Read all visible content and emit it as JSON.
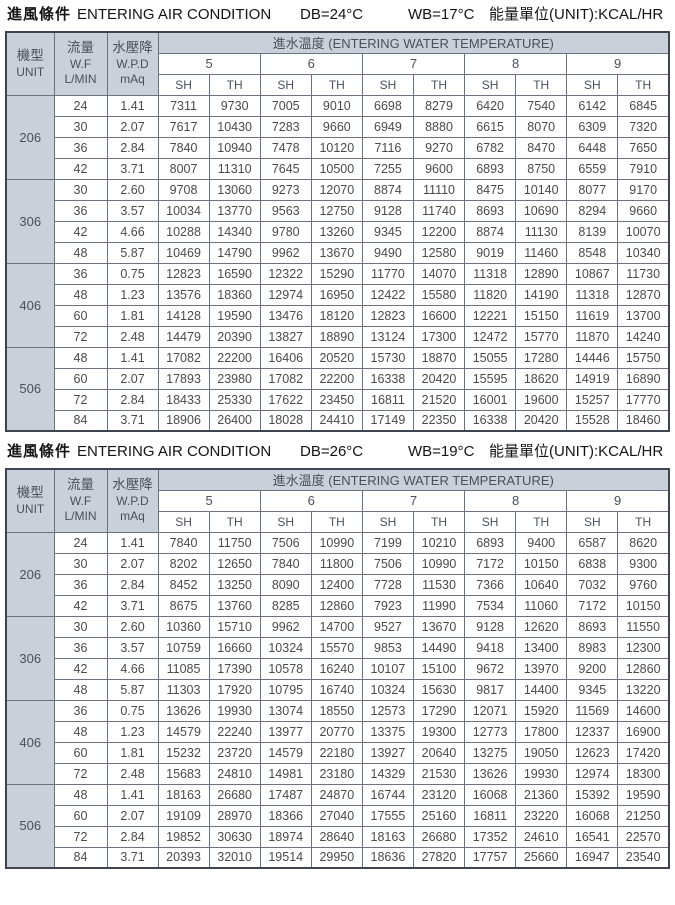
{
  "colors": {
    "header_fill": "#c9d0d9",
    "grid_line": "#6a7380",
    "outer_border": "#3e4450",
    "cell_text": "#4a4a4a",
    "title_text": "#141414"
  },
  "table_header": {
    "col1_zh": "機型",
    "col1_en": "UNIT",
    "col2_zh": "流量",
    "col2_en": "W.F",
    "col2_unit": "L/MIN",
    "col3_zh": "水壓降",
    "col3_en": "W.P.D",
    "col3_unit": "mAq",
    "water_temp_label": "進水温度 (ENTERING WATER TEMPERATURE)",
    "temps": [
      "5",
      "6",
      "7",
      "8",
      "9"
    ],
    "sub_sh": "SH",
    "sub_th": "TH"
  },
  "tables": [
    {
      "title_zh": "進風條件",
      "title_en": "ENTERING AIR CONDITION",
      "db": "DB=24°C",
      "wb": "WB=17°C",
      "energy_unit": "能量單位(UNIT):KCAL/HR",
      "groups": [
        {
          "unit": "206",
          "rows": [
            {
              "wf": "24",
              "wpd": "1.41",
              "v": [
                "7311",
                "9730",
                "7005",
                "9010",
                "6698",
                "8279",
                "6420",
                "7540",
                "6142",
                "6845"
              ]
            },
            {
              "wf": "30",
              "wpd": "2.07",
              "v": [
                "7617",
                "10430",
                "7283",
                "9660",
                "6949",
                "8880",
                "6615",
                "8070",
                "6309",
                "7320"
              ]
            },
            {
              "wf": "36",
              "wpd": "2.84",
              "v": [
                "7840",
                "10940",
                "7478",
                "10120",
                "7116",
                "9270",
                "6782",
                "8470",
                "6448",
                "7650"
              ]
            },
            {
              "wf": "42",
              "wpd": "3.71",
              "v": [
                "8007",
                "11310",
                "7645",
                "10500",
                "7255",
                "9600",
                "6893",
                "8750",
                "6559",
                "7910"
              ]
            }
          ]
        },
        {
          "unit": "306",
          "rows": [
            {
              "wf": "30",
              "wpd": "2.60",
              "v": [
                "9708",
                "13060",
                "9273",
                "12070",
                "8874",
                "11110",
                "8475",
                "10140",
                "8077",
                "9170"
              ]
            },
            {
              "wf": "36",
              "wpd": "3.57",
              "v": [
                "10034",
                "13770",
                "9563",
                "12750",
                "9128",
                "11740",
                "8693",
                "10690",
                "8294",
                "9660"
              ]
            },
            {
              "wf": "42",
              "wpd": "4.66",
              "v": [
                "10288",
                "14340",
                "9780",
                "13260",
                "9345",
                "12200",
                "8874",
                "11130",
                "8139",
                "10070"
              ]
            },
            {
              "wf": "48",
              "wpd": "5.87",
              "v": [
                "10469",
                "14790",
                "9962",
                "13670",
                "9490",
                "12580",
                "9019",
                "11460",
                "8548",
                "10340"
              ]
            }
          ]
        },
        {
          "unit": "406",
          "rows": [
            {
              "wf": "36",
              "wpd": "0.75",
              "v": [
                "12823",
                "16590",
                "12322",
                "15290",
                "11770",
                "14070",
                "11318",
                "12890",
                "10867",
                "11730"
              ]
            },
            {
              "wf": "48",
              "wpd": "1.23",
              "v": [
                "13576",
                "18360",
                "12974",
                "16950",
                "12422",
                "15580",
                "11820",
                "14190",
                "11318",
                "12870"
              ]
            },
            {
              "wf": "60",
              "wpd": "1.81",
              "v": [
                "14128",
                "19590",
                "13476",
                "18120",
                "12823",
                "16600",
                "12221",
                "15150",
                "11619",
                "13700"
              ]
            },
            {
              "wf": "72",
              "wpd": "2.48",
              "v": [
                "14479",
                "20390",
                "13827",
                "18890",
                "13124",
                "17300",
                "12472",
                "15770",
                "11870",
                "14240"
              ]
            }
          ]
        },
        {
          "unit": "506",
          "rows": [
            {
              "wf": "48",
              "wpd": "1.41",
              "v": [
                "17082",
                "22200",
                "16406",
                "20520",
                "15730",
                "18870",
                "15055",
                "17280",
                "14446",
                "15750"
              ]
            },
            {
              "wf": "60",
              "wpd": "2.07",
              "v": [
                "17893",
                "23980",
                "17082",
                "22200",
                "16338",
                "20420",
                "15595",
                "18620",
                "14919",
                "16890"
              ]
            },
            {
              "wf": "72",
              "wpd": "2.84",
              "v": [
                "18433",
                "25330",
                "17622",
                "23450",
                "16811",
                "21520",
                "16001",
                "19600",
                "15257",
                "17770"
              ]
            },
            {
              "wf": "84",
              "wpd": "3.71",
              "v": [
                "18906",
                "26400",
                "18028",
                "24410",
                "17149",
                "22350",
                "16338",
                "20420",
                "15528",
                "18460"
              ]
            }
          ]
        }
      ]
    },
    {
      "title_zh": "進風條件",
      "title_en": "ENTERING AIR CONDITION",
      "db": "DB=26°C",
      "wb": "WB=19°C",
      "energy_unit": "能量單位(UNIT):KCAL/HR",
      "groups": [
        {
          "unit": "206",
          "rows": [
            {
              "wf": "24",
              "wpd": "1.41",
              "v": [
                "7840",
                "11750",
                "7506",
                "10990",
                "7199",
                "10210",
                "6893",
                "9400",
                "6587",
                "8620"
              ]
            },
            {
              "wf": "30",
              "wpd": "2.07",
              "v": [
                "8202",
                "12650",
                "7840",
                "11800",
                "7506",
                "10990",
                "7172",
                "10150",
                "6838",
                "9300"
              ]
            },
            {
              "wf": "36",
              "wpd": "2.84",
              "v": [
                "8452",
                "13250",
                "8090",
                "12400",
                "7728",
                "11530",
                "7366",
                "10640",
                "7032",
                "9760"
              ]
            },
            {
              "wf": "42",
              "wpd": "3.71",
              "v": [
                "8675",
                "13760",
                "8285",
                "12860",
                "7923",
                "11990",
                "7534",
                "11060",
                "7172",
                "10150"
              ]
            }
          ]
        },
        {
          "unit": "306",
          "rows": [
            {
              "wf": "30",
              "wpd": "2.60",
              "v": [
                "10360",
                "15710",
                "9962",
                "14700",
                "9527",
                "13670",
                "9128",
                "12620",
                "8693",
                "11550"
              ]
            },
            {
              "wf": "36",
              "wpd": "3.57",
              "v": [
                "10759",
                "16660",
                "10324",
                "15570",
                "9853",
                "14490",
                "9418",
                "13400",
                "8983",
                "12300"
              ]
            },
            {
              "wf": "42",
              "wpd": "4.66",
              "v": [
                "11085",
                "17390",
                "10578",
                "16240",
                "10107",
                "15100",
                "9672",
                "13970",
                "9200",
                "12860"
              ]
            },
            {
              "wf": "48",
              "wpd": "5.87",
              "v": [
                "11303",
                "17920",
                "10795",
                "16740",
                "10324",
                "15630",
                "9817",
                "14400",
                "9345",
                "13220"
              ]
            }
          ]
        },
        {
          "unit": "406",
          "rows": [
            {
              "wf": "36",
              "wpd": "0.75",
              "v": [
                "13626",
                "19930",
                "13074",
                "18550",
                "12573",
                "17290",
                "12071",
                "15920",
                "11569",
                "14600"
              ]
            },
            {
              "wf": "48",
              "wpd": "1.23",
              "v": [
                "14579",
                "22240",
                "13977",
                "20770",
                "13375",
                "19300",
                "12773",
                "17800",
                "12337",
                "16900"
              ]
            },
            {
              "wf": "60",
              "wpd": "1.81",
              "v": [
                "15232",
                "23720",
                "14579",
                "22180",
                "13927",
                "20640",
                "13275",
                "19050",
                "12623",
                "17420"
              ]
            },
            {
              "wf": "72",
              "wpd": "2.48",
              "v": [
                "15683",
                "24810",
                "14981",
                "23180",
                "14329",
                "21530",
                "13626",
                "19930",
                "12974",
                "18300"
              ]
            }
          ]
        },
        {
          "unit": "506",
          "rows": [
            {
              "wf": "48",
              "wpd": "1.41",
              "v": [
                "18163",
                "26680",
                "17487",
                "24870",
                "16744",
                "23120",
                "16068",
                "21360",
                "15392",
                "19590"
              ]
            },
            {
              "wf": "60",
              "wpd": "2.07",
              "v": [
                "19109",
                "28970",
                "18366",
                "27040",
                "17555",
                "25160",
                "16811",
                "23220",
                "16068",
                "21250"
              ]
            },
            {
              "wf": "72",
              "wpd": "2.84",
              "v": [
                "19852",
                "30630",
                "18974",
                "28640",
                "18163",
                "26680",
                "17352",
                "24610",
                "16541",
                "22570"
              ]
            },
            {
              "wf": "84",
              "wpd": "3.71",
              "v": [
                "20393",
                "32010",
                "19514",
                "29950",
                "18636",
                "27820",
                "17757",
                "25660",
                "16947",
                "23540"
              ]
            }
          ]
        }
      ]
    }
  ]
}
